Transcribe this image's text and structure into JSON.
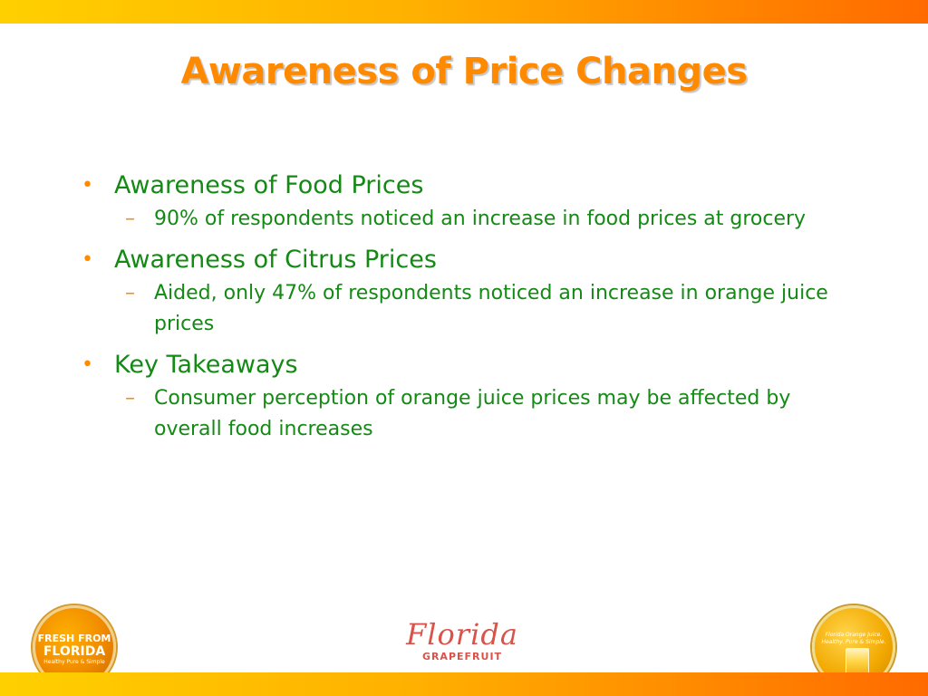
{
  "slide": {
    "title": "Awareness of Price Changes",
    "bullets": [
      {
        "text": "Awareness of Food Prices",
        "sub": [
          "90% of respondents noticed an increase in food prices at grocery"
        ]
      },
      {
        "text": "Awareness of Citrus Prices",
        "sub": [
          "Aided, only 47% of respondents noticed an increase in orange juice prices"
        ]
      },
      {
        "text": "Key Takeaways",
        "sub": [
          "Consumer perception of orange juice prices may be affected by overall food increases"
        ]
      }
    ]
  },
  "footer": {
    "left_badge": {
      "line1": "FRESH FROM",
      "line2": "FLORIDA",
      "line3": "Healthy Pure & Simple"
    },
    "center_logo": {
      "script": "Florida",
      "sub": "GRAPEFRUIT"
    },
    "right_badge": {
      "text": "Florida Orange Juice. Healthy. Pure & Simple.",
      "icon": "juice-glass-icon"
    }
  },
  "colors": {
    "title": "#ff8a00",
    "body_text": "#138a13",
    "bullet_marker": "#ff8a00",
    "bar_start": "#ffd000",
    "bar_end": "#ff6a00"
  }
}
